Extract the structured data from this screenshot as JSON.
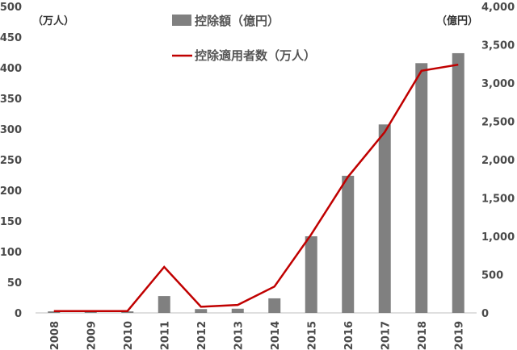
{
  "chart_data": {
    "type": "bar",
    "categories": [
      "2008",
      "2009",
      "2010",
      "2011",
      "2012",
      "2013",
      "2014",
      "2015",
      "2016",
      "2017",
      "2018",
      "2019"
    ],
    "series": [
      {
        "name": "控除額（億円）",
        "type": "bar",
        "axis": "right",
        "values": [
          20,
          20,
          20,
          220,
          50,
          55,
          190,
          1000,
          1790,
          2460,
          3260,
          3390
        ],
        "color": "#808080"
      },
      {
        "name": "控除適用者数（万人）",
        "type": "line",
        "axis": "left",
        "values": [
          3,
          3,
          3,
          75,
          10,
          13,
          43,
          128,
          222,
          295,
          395,
          405
        ],
        "color": "#c00000"
      }
    ],
    "left_axis": {
      "unit_label": "（万人）",
      "ylim": [
        0,
        500
      ],
      "ticks": [
        "0",
        "50",
        "100",
        "150",
        "200",
        "250",
        "300",
        "350",
        "400",
        "450",
        "500"
      ]
    },
    "right_axis": {
      "unit_label": "（億円）",
      "ylim": [
        0,
        4000
      ],
      "ticks": [
        "0",
        "500",
        "1,000",
        "1,500",
        "2,000",
        "2,500",
        "3,000",
        "3,500",
        "4,000"
      ]
    },
    "grid": false,
    "legend_position": "top-center"
  }
}
